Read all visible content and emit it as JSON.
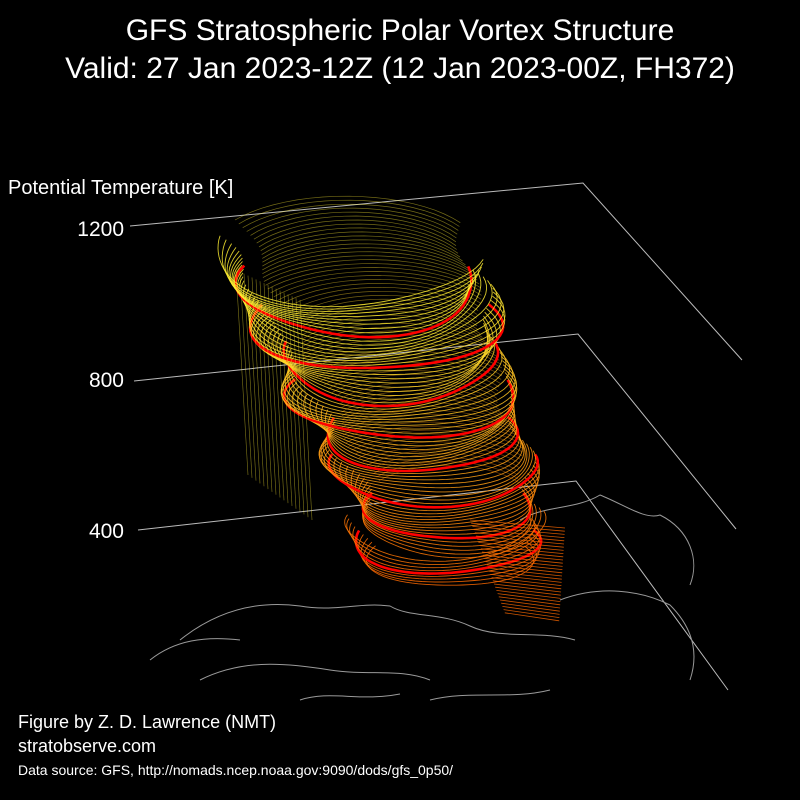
{
  "title": {
    "line1": "GFS Stratospheric Polar Vortex Structure",
    "line2": "Valid: 27 Jan 2023-12Z  (12 Jan 2023-00Z, FH372)"
  },
  "chart_data": {
    "type": "3d-isosurface",
    "zlabel": "Potential Temperature [K]",
    "zticks": [
      400,
      800,
      1200
    ],
    "zlim": [
      350,
      1250
    ],
    "colors": {
      "background": "#000000",
      "accent_ring": "#ff0000",
      "upper_levels": "#ffee33",
      "lower_levels": "#ff6a00",
      "coastline": "#9a9a9a",
      "grid": "#bbbbbb"
    }
  },
  "credits": {
    "author": "Figure by Z. D. Lawrence (NMT)",
    "site": "stratobserve.com",
    "source": "Data source: GFS, http://nomads.ncep.noaa.gov:9090/dods/gfs_0p50/"
  }
}
